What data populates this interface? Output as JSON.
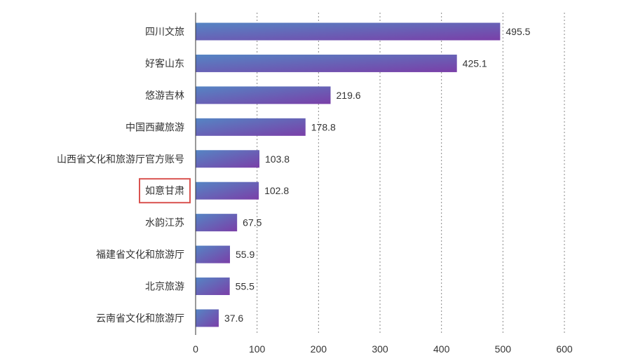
{
  "chart_data": {
    "type": "bar",
    "orientation": "horizontal",
    "categories": [
      "四川文旅",
      "好客山东",
      "悠游吉林",
      "中国西藏旅游",
      "山西省文化和旅游厅官方账号",
      "如意甘肃",
      "水韵江苏",
      "福建省文化和旅游厅",
      "北京旅游",
      "云南省文化和旅游厅"
    ],
    "values": [
      495.5,
      425.1,
      219.6,
      178.8,
      103.8,
      102.8,
      67.5,
      55.9,
      55.5,
      37.6
    ],
    "value_labels": [
      "495.5",
      "425.1",
      "219.6",
      "178.8",
      "103.8",
      "102.8",
      "67.5",
      "55.9",
      "55.5",
      "37.6"
    ],
    "xlim": [
      0,
      600
    ],
    "x_ticks": [
      "0",
      "100",
      "200",
      "300",
      "400",
      "500",
      "600"
    ],
    "grid": "vertical dotted",
    "highlighted_category": "如意甘肃",
    "colors": {
      "bar_start": "#5585c4",
      "bar_end": "#7a3fa8",
      "highlight_box": "#d9534f",
      "grid": "#888888",
      "axis": "#333333"
    }
  }
}
